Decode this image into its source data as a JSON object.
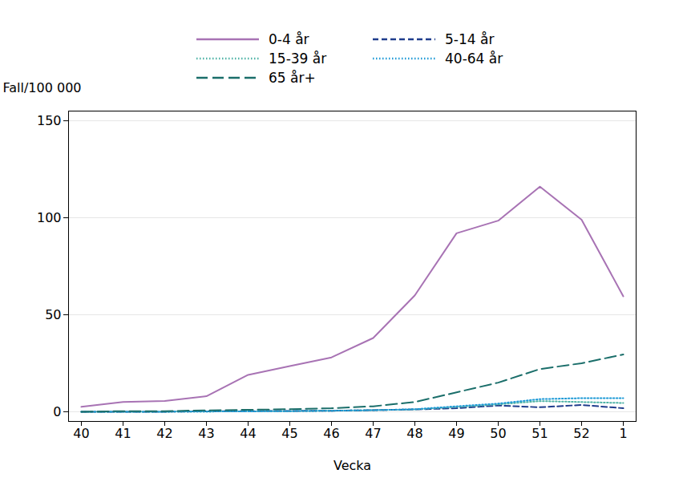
{
  "chart_data": {
    "type": "line",
    "x_label": "Vecka",
    "y_label": "Fall/100 000",
    "categories": [
      "40",
      "41",
      "42",
      "43",
      "44",
      "45",
      "46",
      "47",
      "48",
      "49",
      "50",
      "51",
      "52",
      "1"
    ],
    "series": [
      {
        "name": "0-4 år",
        "color": "#a873b4",
        "line_style": "solid",
        "values": [
          2.5,
          5,
          5.5,
          8,
          19,
          23.5,
          28,
          38,
          60,
          92,
          98.5,
          116,
          99,
          59.5
        ]
      },
      {
        "name": "5-14 år",
        "color": "#1f3d8c",
        "line_style": "dashed",
        "values": [
          0,
          0,
          0,
          0.2,
          0.3,
          0.4,
          0.5,
          0.8,
          1.2,
          1.8,
          3.2,
          2.3,
          3.5,
          1.8
        ]
      },
      {
        "name": "15-39 år",
        "color": "#4fb3a6",
        "line_style": "dotted",
        "values": [
          0,
          0,
          0,
          0.1,
          0.2,
          0.3,
          0.5,
          0.8,
          1.2,
          2.5,
          3.8,
          5.5,
          5,
          4.5
        ]
      },
      {
        "name": "40-64 år",
        "color": "#1e9ad6",
        "line_style": "dotted",
        "values": [
          0,
          0,
          0,
          0.1,
          0.2,
          0.3,
          0.5,
          0.8,
          1.3,
          2.8,
          4.2,
          6.5,
          7,
          7
        ]
      },
      {
        "name": "65 år+",
        "color": "#1a6e6a",
        "line_style": "longdash",
        "values": [
          0,
          0.3,
          0.3,
          0.7,
          1,
          1.3,
          1.8,
          2.8,
          5,
          10,
          15,
          22,
          25,
          29.5
        ]
      }
    ],
    "ylim": [
      -5,
      155
    ],
    "yticks": [
      0,
      50,
      100,
      150
    ],
    "grid": true,
    "legend": "top"
  }
}
